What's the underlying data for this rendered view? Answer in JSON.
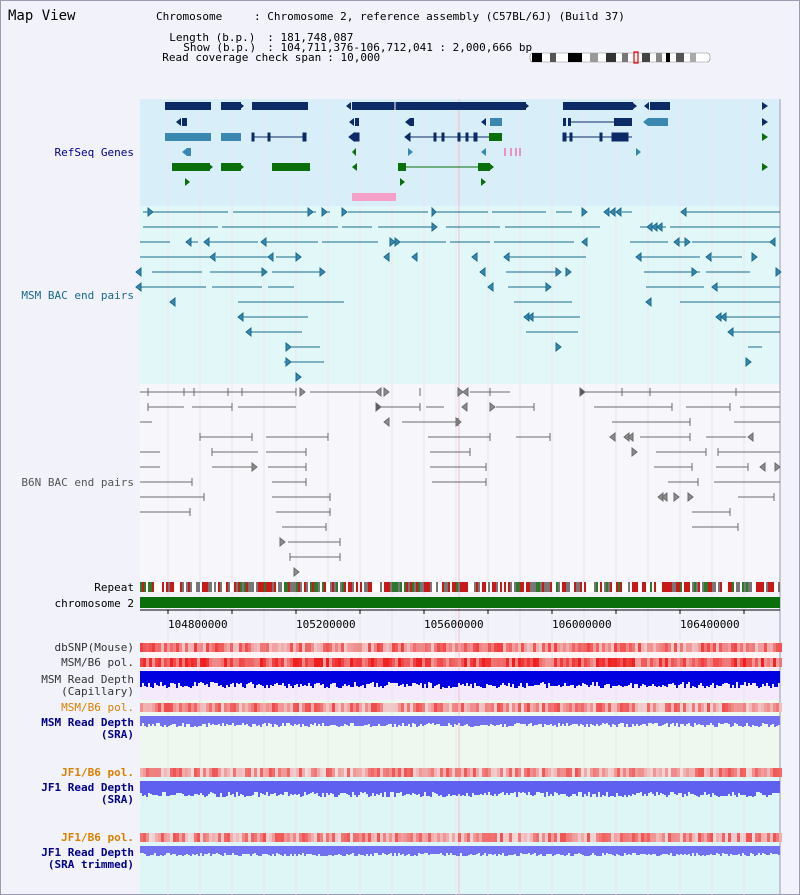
{
  "page": {
    "title": "Map View"
  },
  "header": {
    "chromosome_key": "Chromosome",
    "chromosome_val": ": Chromosome 2, reference assembly (C57BL/6J) (Build 37)",
    "length_key": "Length (b.p.)",
    "length_val": ": 181,748,087",
    "show_key": "Show (b.p.)",
    "show_val": ": 104,711,376-106,712,041 : 2,000,666 bp",
    "coverage_key": "Read coverage check span",
    "coverage_val": ": 10,000"
  },
  "tracks": {
    "refseq": "RefSeq Genes",
    "msm_bac": "MSM BAC end pairs",
    "b6n_bac": "B6N BAC end pairs",
    "repeat": "Repeat",
    "chromosome": "chromosome 2",
    "dbsnp": "dbSNP(Mouse)",
    "msm_b6_pol": "MSM/B6 pol.",
    "msm_depth_cap_1": "MSM Read Depth",
    "msm_depth_cap_2": "(Capillary)",
    "msm_b6_pol_2": "MSM/B6 pol.",
    "msm_depth_sra_1": "MSM Read Depth",
    "msm_depth_sra_2": "(SRA)",
    "jf1_b6_pol": "JF1/B6 pol.",
    "jf1_depth_sra_1": "JF1 Read Depth",
    "jf1_depth_sra_2": "(SRA)",
    "jf1_b6_pol_2": "JF1/B6 pol.",
    "jf1_depth_trim_1": "JF1 Read Depth",
    "jf1_depth_trim_2": "(SRA trimmed)"
  },
  "axis": {
    "ticks": [
      "104800000",
      "105200000",
      "105600000",
      "106000000",
      "106400000"
    ]
  },
  "colors": {
    "refseq_bg": "#d8eef8",
    "msm_bac_bg": "#e2f8f8",
    "gene_navy": "#0c2a66",
    "gene_blue": "#3a88b0",
    "gene_green": "#0a6e0a",
    "bac_teal": "#1b6a8a",
    "bac_grey": "#6c6c6c",
    "label_navy": "#00008b",
    "label_orange": "#d98000",
    "depth_blue": "#0000e0",
    "depth_light": "#7070f0",
    "pol_red": "#e02020"
  }
}
